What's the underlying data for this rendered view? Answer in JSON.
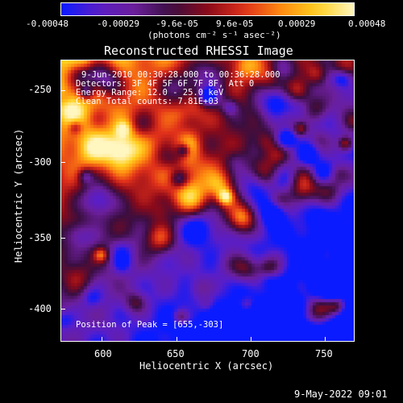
{
  "colorbar": {
    "ticks": [
      "-0.00048",
      "-0.00029",
      "-9.6e-05",
      "9.6e-05",
      "0.00029",
      "0.00048"
    ],
    "unit_label": "(photons cm⁻² s⁻¹ asec⁻²)"
  },
  "plot": {
    "title": "Reconstructed RHESSI Image",
    "info_lines": [
      "9-Jun-2010 00:30:28.000 to 00:36:28.000",
      "Detectors: 3F 4F 5F 6F 7F 8F, Att 0",
      "Energy Range: 12.0 - 25.0 keV",
      "Clean    Total counts: 7.81E+03"
    ],
    "peak_label": "Position of Peak = [655,-303]",
    "x_axis": {
      "label": "Heliocentric X (arcsec)",
      "ticks": [
        "600",
        "650",
        "700",
        "750"
      ],
      "range": [
        570,
        763
      ]
    },
    "y_axis": {
      "label": "Heliocentric Y (arcsec)",
      "ticks": [
        "-250",
        "-300",
        "-350",
        "-400"
      ],
      "range": [
        -422,
        -237
      ]
    },
    "colormap_colors": [
      "#0a1bff",
      "#5a1ec8",
      "#6b1f9a",
      "#3a0e40",
      "#8a0a1a",
      "#e0301a",
      "#ff8a10",
      "#ffd020",
      "#fff6c0"
    ]
  },
  "footer": {
    "timestamp": "9-May-2022 09:01"
  }
}
